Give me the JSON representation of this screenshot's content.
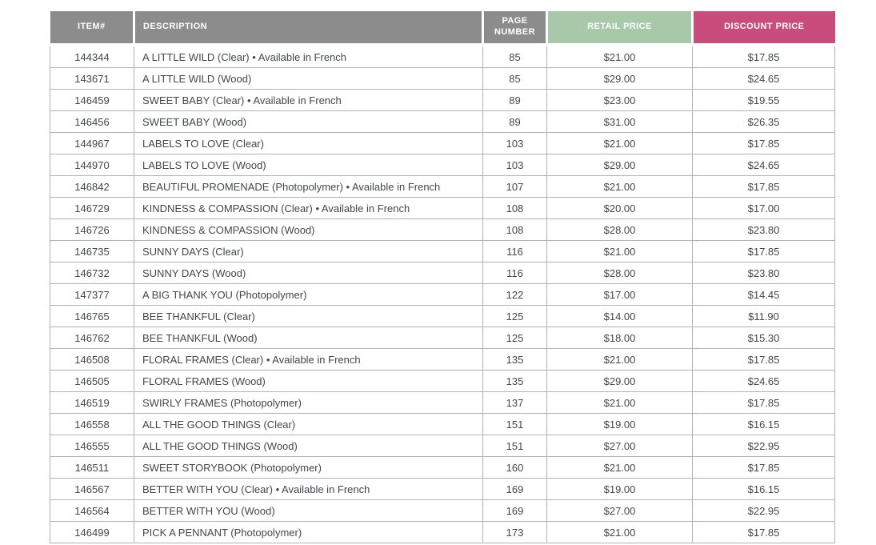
{
  "colors": {
    "header_bg_gray": "#8c8c8c",
    "header_bg_green": "#a7c9a9",
    "header_bg_pink": "#c94d7c",
    "header_text": "#ffffff",
    "body_text": "#43474b",
    "border": "#b2b2b2"
  },
  "table": {
    "columns": [
      {
        "label": "ITEM#"
      },
      {
        "label": "DESCRIPTION"
      },
      {
        "label": "PAGE NUMBER"
      },
      {
        "label": "RETAIL PRICE"
      },
      {
        "label": "DISCOUNT PRICE"
      }
    ],
    "rows": [
      [
        "144344",
        "A LITTLE WILD (Clear) • Available in French",
        "85",
        "$21.00",
        "$17.85"
      ],
      [
        "143671",
        "A LITTLE WILD (Wood)",
        "85",
        "$29.00",
        "$24.65"
      ],
      [
        "146459",
        "SWEET BABY (Clear) • Available in French",
        "89",
        "$23.00",
        "$19.55"
      ],
      [
        "146456",
        "SWEET BABY (Wood)",
        "89",
        "$31.00",
        "$26.35"
      ],
      [
        "144967",
        "LABELS TO LOVE (Clear)",
        "103",
        "$21.00",
        "$17.85"
      ],
      [
        "144970",
        "LABELS TO LOVE (Wood)",
        "103",
        "$29.00",
        "$24.65"
      ],
      [
        "146842",
        "BEAUTIFUL PROMENADE (Photopolymer) • Available in French",
        "107",
        "$21.00",
        "$17.85"
      ],
      [
        "146729",
        "KINDNESS & COMPASSION (Clear) • Available in French",
        "108",
        "$20.00",
        "$17.00"
      ],
      [
        "146726",
        "KINDNESS & COMPASSION (Wood)",
        "108",
        "$28.00",
        "$23.80"
      ],
      [
        "146735",
        "SUNNY DAYS (Clear)",
        "116",
        "$21.00",
        "$17.85"
      ],
      [
        "146732",
        "SUNNY DAYS (Wood)",
        "116",
        "$28.00",
        "$23.80"
      ],
      [
        "147377",
        "A BIG THANK YOU (Photopolymer)",
        "122",
        "$17.00",
        "$14.45"
      ],
      [
        "146765",
        "BEE THANKFUL (Clear)",
        "125",
        "$14.00",
        "$11.90"
      ],
      [
        "146762",
        "BEE THANKFUL (Wood)",
        "125",
        "$18.00",
        "$15.30"
      ],
      [
        "146508",
        "FLORAL FRAMES (Clear) • Available in French",
        "135",
        "$21.00",
        "$17.85"
      ],
      [
        "146505",
        "FLORAL FRAMES (Wood)",
        "135",
        "$29.00",
        "$24.65"
      ],
      [
        "146519",
        "SWIRLY FRAMES (Photopolymer)",
        "137",
        "$21.00",
        "$17.85"
      ],
      [
        "146558",
        "ALL THE GOOD THINGS (Clear)",
        "151",
        "$19.00",
        "$16.15"
      ],
      [
        "146555",
        "ALL THE GOOD THINGS (Wood)",
        "151",
        "$27.00",
        "$22.95"
      ],
      [
        "146511",
        "SWEET STORYBOOK (Photopolymer)",
        "160",
        "$21.00",
        "$17.85"
      ],
      [
        "146567",
        "BETTER WITH YOU (Clear) • Available in French",
        "169",
        "$19.00",
        "$16.15"
      ],
      [
        "146564",
        "BETTER WITH YOU (Wood)",
        "169",
        "$27.00",
        "$22.95"
      ],
      [
        "146499",
        "PICK A PENNANT (Photopolymer)",
        "173",
        "$21.00",
        "$17.85"
      ]
    ]
  }
}
